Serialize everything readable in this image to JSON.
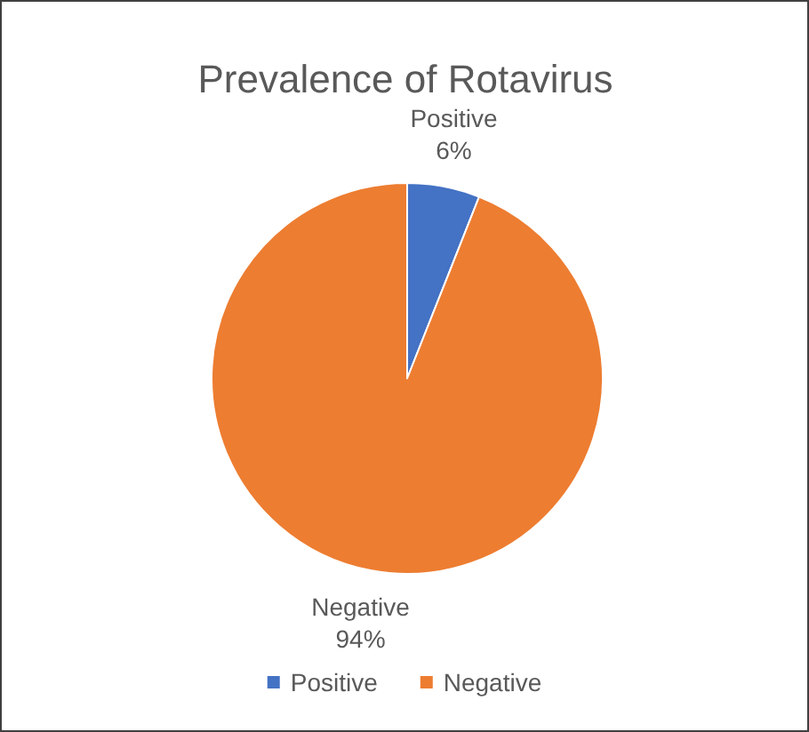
{
  "chart_data": {
    "type": "pie",
    "title": "Prevalence of Rotavirus",
    "categories": [
      "Positive",
      "Negative"
    ],
    "values": [
      6,
      94
    ],
    "colors": [
      "#4472c4",
      "#ed7d31"
    ],
    "value_labels": [
      "6%",
      "94%"
    ],
    "legend": "bottom"
  }
}
